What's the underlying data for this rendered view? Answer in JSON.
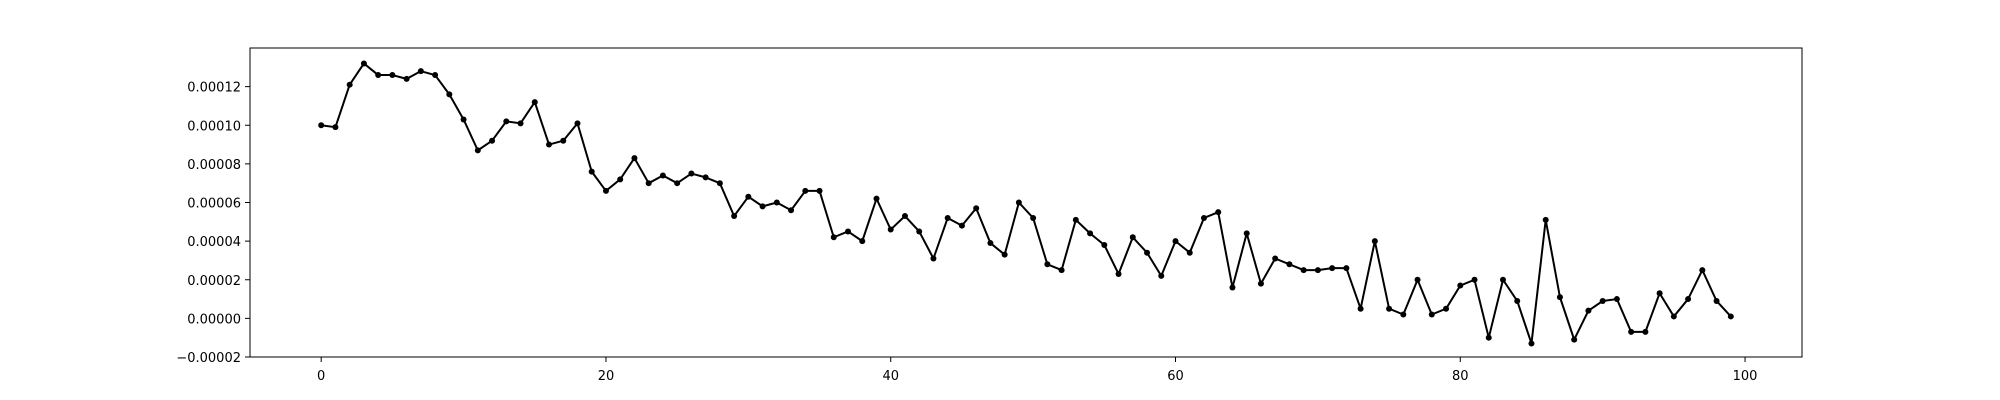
{
  "chart_data": {
    "type": "line",
    "title": "",
    "xlabel": "",
    "ylabel": "",
    "xlim": [
      -5,
      104
    ],
    "ylim": [
      -2e-05,
      0.00014
    ],
    "x_ticks": [
      0,
      20,
      40,
      60,
      80,
      100
    ],
    "x_tick_labels": [
      "0",
      "20",
      "40",
      "60",
      "80",
      "100"
    ],
    "y_ticks": [
      -2e-05,
      0,
      2e-05,
      4e-05,
      6e-05,
      8e-05,
      0.0001,
      0.00012
    ],
    "y_tick_labels": [
      "−0.00002",
      "0.00000",
      "0.00002",
      "0.00004",
      "0.00006",
      "0.00008",
      "0.00010",
      "0.00012"
    ],
    "grid": false,
    "line_color": "#000000",
    "marker": "dot",
    "series": [
      {
        "values": [
          0.0001,
          9.9e-05,
          0.000121,
          0.000132,
          0.000126,
          0.000126,
          0.000124,
          0.000128,
          0.000126,
          0.000116,
          0.000103,
          8.7e-05,
          9.2e-05,
          0.000102,
          0.000101,
          0.000112,
          9e-05,
          9.2e-05,
          0.000101,
          7.6e-05,
          6.6e-05,
          7.2e-05,
          8.3e-05,
          7e-05,
          7.4e-05,
          7e-05,
          7.5e-05,
          7.3e-05,
          7e-05,
          5.3e-05,
          6.3e-05,
          5.8e-05,
          6e-05,
          5.6e-05,
          6.6e-05,
          6.6e-05,
          4.2e-05,
          4.5e-05,
          4e-05,
          6.2e-05,
          4.6e-05,
          5.3e-05,
          4.5e-05,
          3.1e-05,
          5.2e-05,
          4.8e-05,
          5.7e-05,
          3.9e-05,
          3.3e-05,
          6e-05,
          5.2e-05,
          2.8e-05,
          2.5e-05,
          5.1e-05,
          4.4e-05,
          3.8e-05,
          2.3e-05,
          4.2e-05,
          3.4e-05,
          2.2e-05,
          4e-05,
          3.4e-05,
          5.2e-05,
          5.5e-05,
          1.6e-05,
          4.4e-05,
          1.8e-05,
          3.1e-05,
          2.8e-05,
          2.5e-05,
          2.5e-05,
          2.6e-05,
          2.6e-05,
          5e-06,
          4e-05,
          5e-06,
          2e-06,
          2e-05,
          2e-06,
          5e-06,
          1.7e-05,
          2e-05,
          -1e-05,
          2e-05,
          9e-06,
          -1.3e-05,
          5.1e-05,
          1.1e-05,
          -1.1e-05,
          4e-06,
          9e-06,
          1e-05,
          -7e-06,
          -7e-06,
          1.3e-05,
          1e-06,
          1e-05,
          2.5e-05,
          9e-06,
          1e-06
        ]
      }
    ]
  }
}
